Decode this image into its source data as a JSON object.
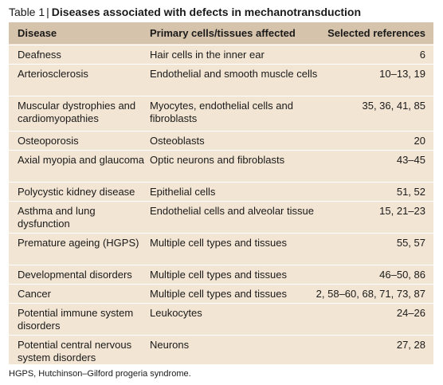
{
  "table": {
    "label": "Table 1",
    "separator": "|",
    "title": "Diseases associated with defects in mechanotransduction",
    "columns": [
      "Disease",
      "Primary cells/tissues affected",
      "Selected references"
    ],
    "rows": [
      {
        "disease": "Deafness",
        "cells": "Hair cells in the inner ear",
        "refs": "6"
      },
      {
        "disease": "Arteriosclerosis",
        "cells": "Endothelial and smooth muscle cells",
        "refs": "10–13, 19"
      },
      {
        "disease": "Muscular dystrophies and cardiomyopathies",
        "cells": "Myocytes, endothelial cells and fibroblasts",
        "refs": "35, 36, 41, 85"
      },
      {
        "disease": "Osteoporosis",
        "cells": "Osteoblasts",
        "refs": "20"
      },
      {
        "disease": "Axial myopia and glaucoma",
        "cells": "Optic neurons and fibroblasts",
        "refs": "43–45"
      },
      {
        "disease": "Polycystic kidney disease",
        "cells": "Epithelial cells",
        "refs": "51, 52"
      },
      {
        "disease": "Asthma and lung dysfunction",
        "cells": "Endothelial cells and alveolar tissue",
        "refs": "15, 21–23"
      },
      {
        "disease": "Premature ageing (HGPS)",
        "cells": "Multiple cell types and tissues",
        "refs": "55, 57"
      },
      {
        "disease": "Developmental disorders",
        "cells": "Multiple cell types and tissues",
        "refs": "46–50, 86"
      },
      {
        "disease": "Cancer",
        "cells": "Multiple cell types and tissues",
        "refs": "2, 58–60, 68, 71, 73, 87"
      },
      {
        "disease": "Potential immune system disorders",
        "cells": "Leukocytes",
        "refs": "24–26"
      },
      {
        "disease": "Potential central nervous system disorders",
        "cells": "Neurons",
        "refs": "27, 28"
      }
    ],
    "footnote": "HGPS, Hutchinson–Gilford progeria syndrome."
  },
  "colors": {
    "header_bg": "#d6c3ac",
    "body_bg": "#f3e5d3",
    "row_divider": "#ffffff"
  }
}
